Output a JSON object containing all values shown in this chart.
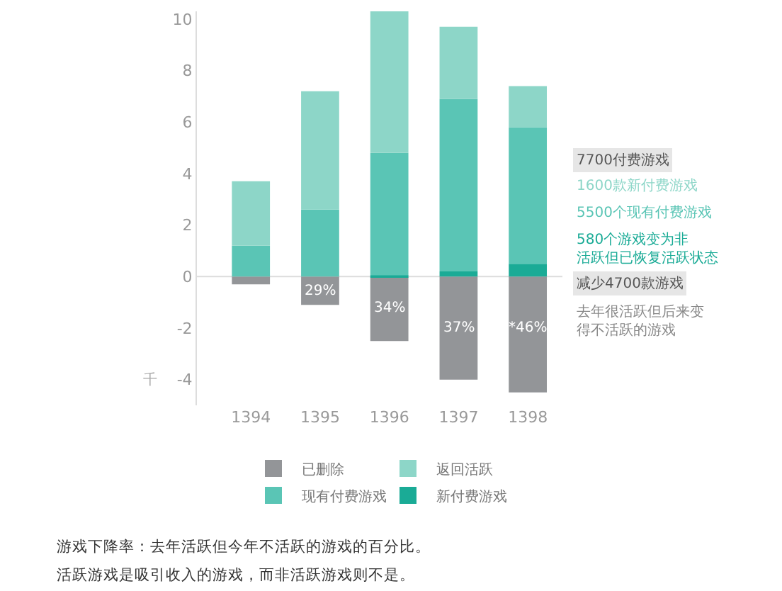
{
  "chart_data": {
    "type": "bar",
    "stacked": true,
    "categories": [
      "1394",
      "1395",
      "1396",
      "1397",
      "1398"
    ],
    "series": [
      {
        "name": "已删除",
        "color": "#939598",
        "values": [
          -0.3,
          -1.1,
          -2.5,
          -4.0,
          -4.5
        ]
      },
      {
        "name": "新付费游戏",
        "color": "#1aab96",
        "values": [
          0,
          0,
          0.05,
          0.2,
          0.5
        ]
      },
      {
        "name": "现有付费游戏",
        "color": "#5ac5b5",
        "values": [
          1.2,
          2.6,
          4.75,
          6.7,
          5.3
        ]
      },
      {
        "name": "返回活跃",
        "color": "#8dd6c8",
        "values": [
          2.5,
          4.6,
          5.5,
          2.8,
          1.6
        ]
      }
    ],
    "ref_lines": [
      {
        "axis": "y",
        "value": 0,
        "color": "#dddddd"
      }
    ],
    "ylim": [
      -5,
      10.3
    ],
    "yticks": [
      -4,
      -2,
      0,
      2,
      4,
      6,
      8,
      10
    ],
    "ylabel": "千",
    "grid": false,
    "legend": "bottom",
    "annotations": [
      "7700付费游戏",
      "1600款新付费游戏",
      "5500个现有付费游戏",
      "580个游戏变为非活跃但已恢复活跃状态",
      "减少4700款游戏",
      "去年很活跃但后来变得不活跃的游戏",
      "游戏下降率：去年活跃但今年不活跃的游戏的百分比。",
      "活跃游戏是吸引收入的游戏，而非活跃游戏则不是。",
      "29%",
      "34%",
      "37%",
      "*46%"
    ]
  }
}
